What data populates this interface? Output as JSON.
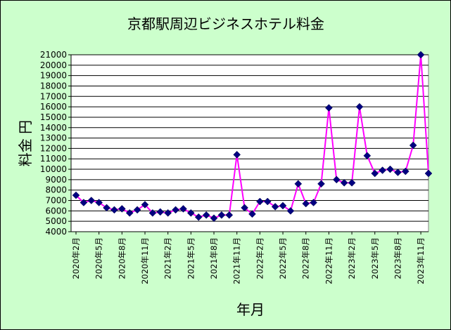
{
  "chart_data": {
    "type": "line",
    "title": "京都駅周辺ビジネスホテル料金",
    "xlabel": "年月",
    "ylabel": "料金 円",
    "ylim": [
      4000,
      21000
    ],
    "ytick_step": 1000,
    "grid": true,
    "line_color": "#ff00ff",
    "marker_color": "#000080",
    "plot_background": "#ffffff",
    "background": "#ccffcc",
    "x_tick_labels": [
      "2020年2月",
      "2020年5月",
      "2020年8月",
      "2020年11月",
      "2021年2月",
      "2021年5月",
      "2021年8月",
      "2021年11月",
      "2022年2月",
      "2022年5月",
      "2022年8月",
      "2022年11月",
      "2023年2月",
      "2023年5月",
      "2023年8月",
      "2023年11月"
    ],
    "x": [
      "2020-02",
      "2020-03",
      "2020-04",
      "2020-05",
      "2020-06",
      "2020-07",
      "2020-08",
      "2020-09",
      "2020-10",
      "2020-11",
      "2020-12",
      "2021-01",
      "2021-02",
      "2021-03",
      "2021-04",
      "2021-05",
      "2021-06",
      "2021-07",
      "2021-08",
      "2021-09",
      "2021-10",
      "2021-11",
      "2021-12",
      "2022-01",
      "2022-02",
      "2022-03",
      "2022-04",
      "2022-05",
      "2022-06",
      "2022-07",
      "2022-08",
      "2022-09",
      "2022-10",
      "2022-11",
      "2022-12",
      "2023-01",
      "2023-02",
      "2023-03",
      "2023-04",
      "2023-05",
      "2023-06",
      "2023-07",
      "2023-08",
      "2023-09",
      "2023-10",
      "2023-11",
      "2023-12"
    ],
    "series": [
      {
        "values": [
          7500,
          6800,
          7000,
          6800,
          6300,
          6100,
          6200,
          5800,
          6100,
          6600,
          5800,
          5900,
          5800,
          6100,
          6200,
          5800,
          5400,
          5600,
          5300,
          5600,
          5600,
          11400,
          6300,
          5700,
          6900,
          6900,
          6400,
          6500,
          6000,
          8600,
          6700,
          6800,
          8600,
          15900,
          9000,
          8700,
          8700,
          16000,
          11300,
          9600,
          9900,
          10000,
          9700,
          9800,
          12300,
          21000,
          9600
        ]
      }
    ]
  }
}
